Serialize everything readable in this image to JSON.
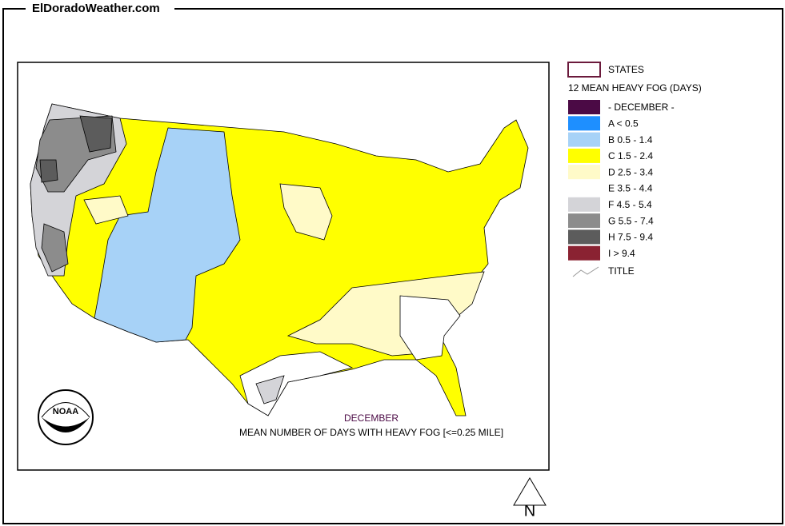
{
  "header": {
    "title": "ElDoradoWeather.com"
  },
  "map": {
    "caption_month": "DECEMBER",
    "caption": "MEAN NUMBER OF DAYS WITH HEAVY FOG [<=0.25 MILE]",
    "logo": "NOAA",
    "north": "N"
  },
  "legend": {
    "states": "STATES",
    "title": "12 MEAN HEAVY FOG (DAYS)",
    "items": [
      {
        "label": "- DECEMBER -",
        "color": "#4b0a45"
      },
      {
        "label": "A < 0.5",
        "color": "#1e8fff"
      },
      {
        "label": "B 0.5 - 1.4",
        "color": "#a7d2f7"
      },
      {
        "label": "C 1.5 - 2.4",
        "color": "#ffff00"
      },
      {
        "label": "D 2.5 - 3.4",
        "color": "#fffac8"
      },
      {
        "label": "E 3.5 - 4.4",
        "color": "#ffffff"
      },
      {
        "label": "F 4.5 - 5.4",
        "color": "#d4d4d8"
      },
      {
        "label": "G 5.5 - 7.4",
        "color": "#8c8c8c"
      },
      {
        "label": "H 7.5 - 9.4",
        "color": "#5c5c5c"
      },
      {
        "label": "I > 9.4",
        "color": "#8a2232"
      }
    ],
    "title_item": "TITLE"
  }
}
